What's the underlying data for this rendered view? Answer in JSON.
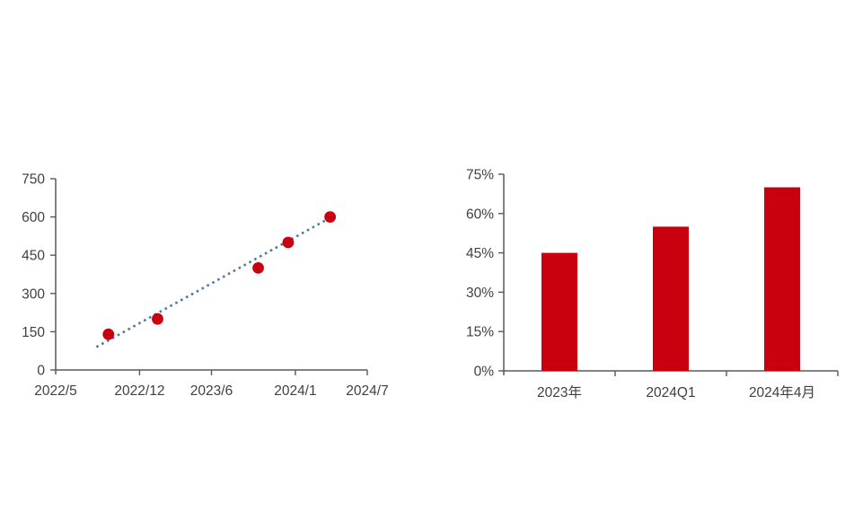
{
  "colors": {
    "series_red": "#c9000e",
    "trendline_blue": "#54779e",
    "axis": "#595959",
    "text": "#404040",
    "background": "#ffffff"
  },
  "chart_data": [
    {
      "type": "scatter",
      "title": "",
      "xlabel": "",
      "ylabel": "",
      "ylim": [
        0,
        750
      ],
      "y_ticks": [
        0,
        150,
        300,
        450,
        600,
        750
      ],
      "y_tick_labels": [
        "0",
        "150",
        "300",
        "450",
        "600",
        "750"
      ],
      "x_axis": {
        "kind": "date-months",
        "months_span": 26,
        "tick_months": [
          0,
          7,
          13,
          20,
          26
        ],
        "tick_labels": [
          "2022/5",
          "2022/12",
          "2023/6",
          "2024/1",
          "2024/7"
        ]
      },
      "grid": false,
      "legend": false,
      "points": [
        {
          "approx_date": "2022/9",
          "month_offset": 4.4,
          "value": 140
        },
        {
          "approx_date": "2023/1",
          "month_offset": 8.5,
          "value": 200
        },
        {
          "approx_date": "2023/10",
          "month_offset": 16.9,
          "value": 400
        },
        {
          "approx_date": "2023/12",
          "month_offset": 19.4,
          "value": 500
        },
        {
          "approx_date": "2024/4",
          "month_offset": 22.9,
          "value": 600
        }
      ],
      "trendline": {
        "style": "dotted",
        "from": {
          "month_offset": 3.4,
          "value": 90
        },
        "to": {
          "month_offset": 23.6,
          "value": 615
        }
      }
    },
    {
      "type": "bar",
      "title": "",
      "categories": [
        "2023年",
        "2024Q1",
        "2024年4月"
      ],
      "values": [
        45,
        55,
        70
      ],
      "value_unit": "%",
      "ylim": [
        0,
        75
      ],
      "y_ticks": [
        0,
        15,
        30,
        45,
        60,
        75
      ],
      "y_tick_labels": [
        "0%",
        "15%",
        "30%",
        "45%",
        "60%",
        "75%"
      ],
      "grid": false,
      "legend": false
    }
  ]
}
